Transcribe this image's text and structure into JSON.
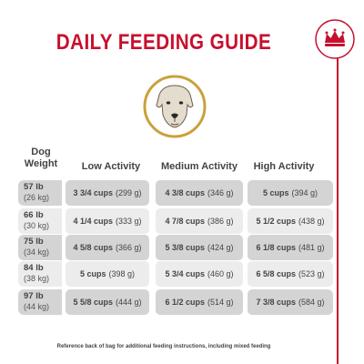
{
  "title": "DAILY FEEDING GUIDE",
  "colors": {
    "brand_red": "#c8102e",
    "row_dark": "#d4d4d4",
    "row_light": "#ececec"
  },
  "headers": {
    "weight_line1": "Dog",
    "weight_line2": "Weight",
    "low": "Low Activity",
    "medium": "Medium Activity",
    "high": "High Activity"
  },
  "rows": [
    {
      "lb": "57 lb",
      "kg": "(26 kg)",
      "low_cups": "3 3/4 cups",
      "low_g": "(299 g)",
      "med_cups": "4 3/8 cups",
      "med_g": "(346 g)",
      "high_cups": "5 cups",
      "high_g": "(394 g)"
    },
    {
      "lb": "66 lb",
      "kg": "(30 kg)",
      "low_cups": "4 1/4 cups",
      "low_g": "(333 g)",
      "med_cups": "4 7/8 cups",
      "med_g": "(386 g)",
      "high_cups": "5 1/2 cups",
      "high_g": "(438 g)"
    },
    {
      "lb": "75 lb",
      "kg": "(34 kg)",
      "low_cups": "4 5/8 cups",
      "low_g": "(366 g)",
      "med_cups": "5 3/8 cups",
      "med_g": "(424 g)",
      "high_cups": "6 1/8 cups",
      "high_g": "(481 g)"
    },
    {
      "lb": "84 lb",
      "kg": "(38 kg)",
      "low_cups": "5 cups",
      "low_g": "(398 g)",
      "med_cups": "5 3/4 cups",
      "med_g": "(460 g)",
      "high_cups": "6 5/8 cups",
      "high_g": "(523 g)"
    },
    {
      "lb": "97 lb",
      "kg": "(44 kg)",
      "low_cups": "5 5/8 cups",
      "low_g": "(444 g)",
      "med_cups": "6 1/2 cups",
      "med_g": "(514 g)",
      "high_cups": "7 3/8 cups",
      "high_g": "(584 g)"
    }
  ],
  "footnote": "Reference back of bag for additional feeding instructions, including mixed feeding",
  "icons": {
    "badge": "crown-icon",
    "portrait": "dog-portrait-image"
  }
}
